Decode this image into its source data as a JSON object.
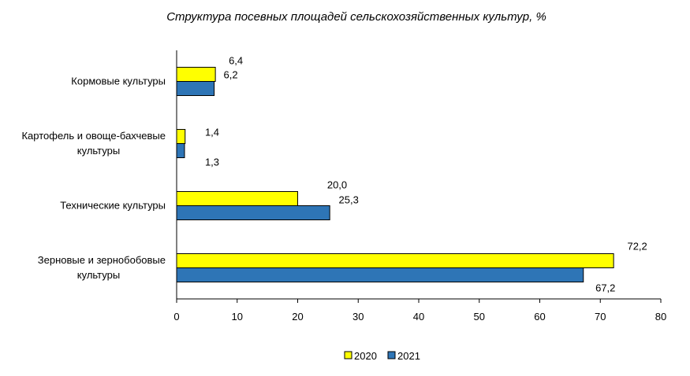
{
  "chart_data": {
    "type": "bar",
    "orientation": "horizontal",
    "title": "Структура посевных площадей сельскохозяйственных культур, %",
    "categories": [
      [
        "Зерновые и зернобобовые",
        "культуры"
      ],
      [
        "Технические культуры"
      ],
      [
        "Картофель и овоще-бахчевые",
        "культуры"
      ],
      [
        "Кормовые культуры"
      ]
    ],
    "series": [
      {
        "name": "2020",
        "color": "#ffff00",
        "values": [
          72.2,
          20.0,
          1.4,
          6.4
        ],
        "labels": [
          "72,2",
          "20,0",
          "1,4",
          "6,4"
        ]
      },
      {
        "name": "2021",
        "color": "#2e75b6",
        "values": [
          67.2,
          25.3,
          1.3,
          6.2
        ],
        "labels": [
          "67,2",
          "25,3",
          "1,3",
          "6,2"
        ]
      }
    ],
    "xlim": [
      0,
      80
    ],
    "xticks": [
      "0",
      "10",
      "20",
      "30",
      "40",
      "50",
      "60",
      "70",
      "80"
    ],
    "xlabel": "",
    "ylabel": "",
    "grid": false,
    "legend_position": "bottom"
  }
}
